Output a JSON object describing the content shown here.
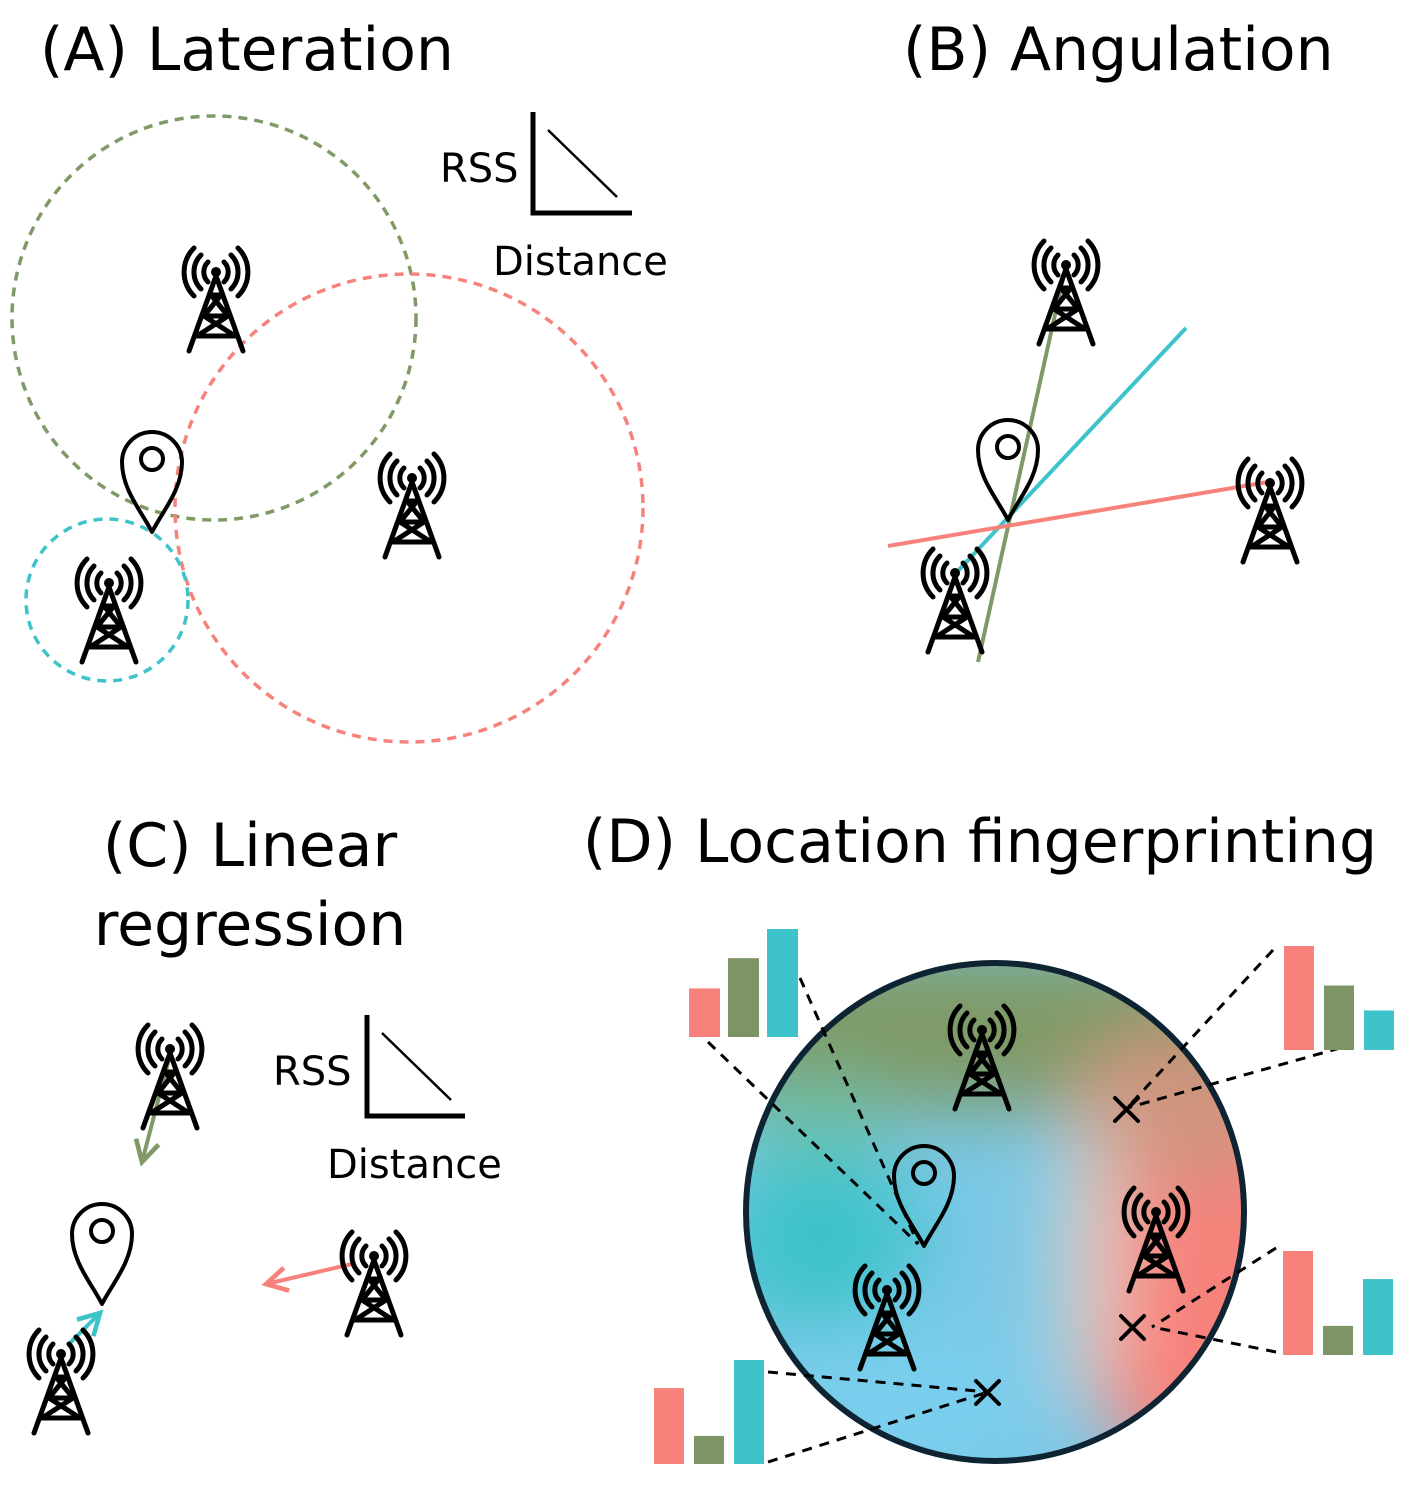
{
  "panels": {
    "a": {
      "title": "(A) Lateration",
      "rss_label": "RSS",
      "distance_label": "Distance"
    },
    "b": {
      "title": "(B) Angulation"
    },
    "c": {
      "title_line1": "(C) Linear",
      "title_line2": "regression",
      "rss_label": "RSS",
      "distance_label": "Distance"
    },
    "d": {
      "title": "(D) Location fingerprinting"
    }
  },
  "colors": {
    "red": "#f7827c",
    "green": "#7f9a66",
    "cyan": "#3ec3cb",
    "olive": "#7d9464",
    "dark_border": "#0f2433"
  },
  "icons": [
    "cell-tower-icon",
    "location-pin-icon",
    "cross-marker-icon"
  ],
  "fingerprints": [
    {
      "red": 0.45,
      "green": 0.73,
      "cyan": 1.0
    },
    {
      "red": 1.0,
      "green": 0.62,
      "cyan": 0.38
    },
    {
      "red": 1.0,
      "green": 0.28,
      "cyan": 0.73
    },
    {
      "red": 0.73,
      "green": 0.27,
      "cyan": 1.0
    }
  ]
}
